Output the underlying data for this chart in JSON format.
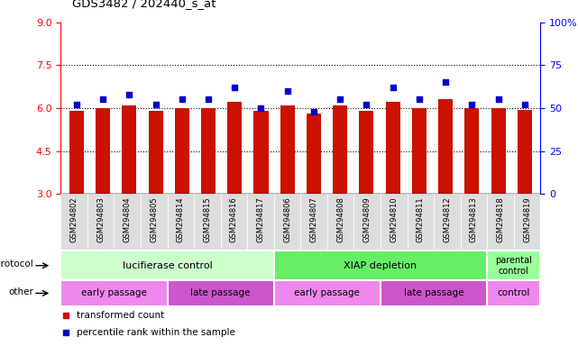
{
  "title": "GDS3482 / 202440_s_at",
  "samples": [
    "GSM294802",
    "GSM294803",
    "GSM294804",
    "GSM294805",
    "GSM294814",
    "GSM294815",
    "GSM294816",
    "GSM294817",
    "GSM294806",
    "GSM294807",
    "GSM294808",
    "GSM294809",
    "GSM294810",
    "GSM294811",
    "GSM294812",
    "GSM294813",
    "GSM294818",
    "GSM294819"
  ],
  "bar_values": [
    5.92,
    6.01,
    6.11,
    5.92,
    6.01,
    6.01,
    6.22,
    5.89,
    6.1,
    5.8,
    6.1,
    5.92,
    6.22,
    6.01,
    6.32,
    6.01,
    6.01,
    5.95
  ],
  "dot_values": [
    52,
    55,
    58,
    52,
    55,
    55,
    62,
    50,
    60,
    48,
    55,
    52,
    62,
    55,
    65,
    52,
    55,
    52
  ],
  "bar_color": "#cc1100",
  "dot_color": "#0000cc",
  "ylim_left": [
    3,
    9
  ],
  "ylim_right": [
    0,
    100
  ],
  "yticks_left": [
    3,
    4.5,
    6,
    7.5,
    9
  ],
  "yticks_right": [
    0,
    25,
    50,
    75,
    100
  ],
  "protocol_groups": [
    {
      "label": "lucifierase control",
      "start": 0,
      "end": 8,
      "color": "#ccffcc"
    },
    {
      "label": "XIAP depletion",
      "start": 8,
      "end": 16,
      "color": "#66ee66"
    },
    {
      "label": "parental\ncontrol",
      "start": 16,
      "end": 18,
      "color": "#99ff99"
    }
  ],
  "other_groups": [
    {
      "label": "early passage",
      "start": 0,
      "end": 4,
      "color": "#ee88ee"
    },
    {
      "label": "late passage",
      "start": 4,
      "end": 8,
      "color": "#cc55cc"
    },
    {
      "label": "early passage",
      "start": 8,
      "end": 12,
      "color": "#ee88ee"
    },
    {
      "label": "late passage",
      "start": 12,
      "end": 16,
      "color": "#cc55cc"
    },
    {
      "label": "control",
      "start": 16,
      "end": 18,
      "color": "#ee88ee"
    }
  ],
  "legend_items": [
    {
      "label": "transformed count",
      "color": "#cc1100"
    },
    {
      "label": "percentile rank within the sample",
      "color": "#0000cc"
    }
  ],
  "protocol_label": "protocol",
  "other_label": "other"
}
